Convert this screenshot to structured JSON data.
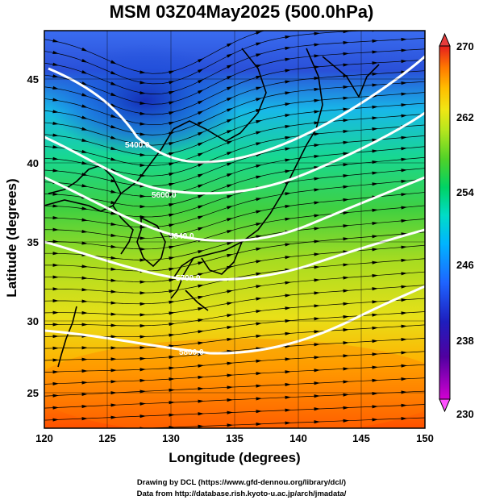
{
  "title": "MSM 03Z04May2025 (500.0hPa)",
  "xlabel": "Longitude (degrees)",
  "ylabel": "Latitude  (degrees)",
  "credits": {
    "line1": "Drawing by DCL (https://www.gfd-dennou.org/library/dcl/)",
    "line2": "Data from http://database.rish.kyoto-u.ac.jp/arch/jmadata/"
  },
  "map": {
    "lon_range": [
      120,
      150
    ],
    "lat_range": [
      22.5,
      47.6
    ],
    "lon_ticks": [
      "120",
      "125",
      "130",
      "135",
      "140",
      "145",
      "150"
    ],
    "lat_ticks": [
      "25",
      "30",
      "35",
      "40",
      "45"
    ],
    "field": "temperature (shaded) with height contours and wind streamlines"
  },
  "colorbar": {
    "min": 230,
    "max": 270,
    "ticks": [
      "270",
      "262",
      "254",
      "246",
      "238",
      "230"
    ],
    "colors": [
      "#c800c8",
      "#5a00a0",
      "#1e1ebe",
      "#1e64ff",
      "#00b4ff",
      "#00dcc8",
      "#00dc78",
      "#32d232",
      "#96dc1e",
      "#e6e614",
      "#ffc800",
      "#ff8c00",
      "#ff5a00",
      "#e61e1e"
    ]
  },
  "contours": {
    "color": "#ffffff",
    "labels": [
      "5400.0",
      "5600.0",
      "5640.0",
      "5700.0",
      "5800.0"
    ]
  }
}
